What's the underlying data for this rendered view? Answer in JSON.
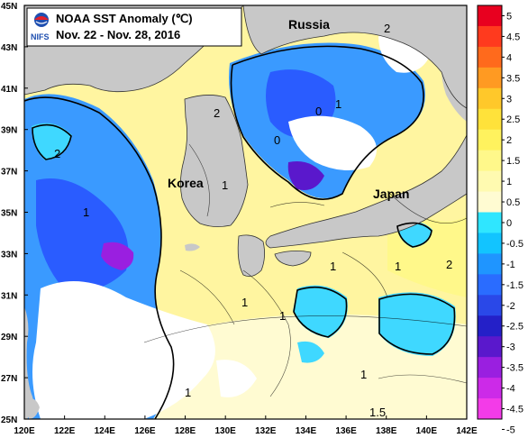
{
  "title": {
    "org": "NIFS",
    "line1": "NOAA SST Anomaly (℃)",
    "line2": "Nov. 22 - Nov. 28, 2016"
  },
  "places": {
    "russia": "Russia",
    "korea": "Korea",
    "japan": "Japan"
  },
  "axes": {
    "lat_labels": [
      "45N",
      "43N",
      "41N",
      "39N",
      "37N",
      "35N",
      "33N",
      "31N",
      "29N",
      "27N",
      "25N"
    ],
    "lon_labels": [
      "120E",
      "122E",
      "124E",
      "126E",
      "128E",
      "130E",
      "132E",
      "134E",
      "136E",
      "138E",
      "140E",
      "142E"
    ]
  },
  "colorbar": {
    "ticks": [
      "5",
      "4.5",
      "4",
      "3.5",
      "3",
      "2.5",
      "2",
      "1.5",
      "1",
      "0.5",
      "0",
      "-0.5",
      "-1",
      "-1.5",
      "-2",
      "-2.5",
      "-3",
      "-3.5",
      "-4",
      "-4.5",
      "-5"
    ],
    "colors": [
      "#e8001f",
      "#ff3a1e",
      "#ff6a1c",
      "#ff9a22",
      "#ffc82a",
      "#ffe23a",
      "#fff25e",
      "#fff88a",
      "#fffab0",
      "#fffbd2",
      "#2fe6ff",
      "#12c4ff",
      "#1f95ff",
      "#2a6cff",
      "#2a48e8",
      "#2420c8",
      "#5a18cc",
      "#9a1fe0",
      "#cc2ae8",
      "#f33be8"
    ]
  },
  "contour_labels": [
    "2",
    "1",
    "0",
    "1",
    "2",
    "1",
    "2",
    "1",
    "1",
    "2",
    "1",
    "0",
    "1",
    "1.5",
    "1",
    "1"
  ],
  "colors": {
    "land": "#c8c8c8",
    "warm": "#fff5a0",
    "cool": "#3a9aff",
    "cold": "#2a5cff",
    "cyan": "#3fd8ff",
    "missing": "#ffffff"
  }
}
